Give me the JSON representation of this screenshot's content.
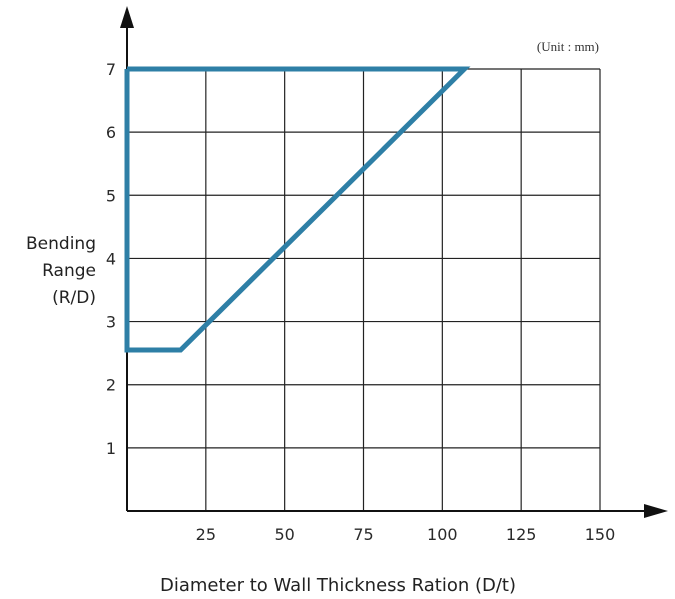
{
  "chart_data": {
    "type": "line",
    "unit_note": "(Unit : mm)",
    "xlabel": "Diameter to Wall Thickness Ration (D/t)",
    "ylabel": [
      "Bending",
      "Range",
      "(R/D)"
    ],
    "x_ticks": [
      "25",
      "50",
      "75",
      "100",
      "125",
      "150"
    ],
    "y_ticks": [
      "1",
      "2",
      "3",
      "4",
      "5",
      "6",
      "7"
    ],
    "xlim": [
      0,
      150
    ],
    "ylim": [
      0,
      7
    ],
    "grid": true,
    "series": [
      {
        "points": [
          [
            0,
            7
          ],
          [
            107,
            7
          ],
          [
            17,
            2.55
          ],
          [
            0,
            2.55
          ],
          [
            0,
            7
          ]
        ]
      }
    ],
    "colors": {
      "series": "#2e7fa6",
      "grid": "#222222",
      "axis": "#111111"
    }
  }
}
